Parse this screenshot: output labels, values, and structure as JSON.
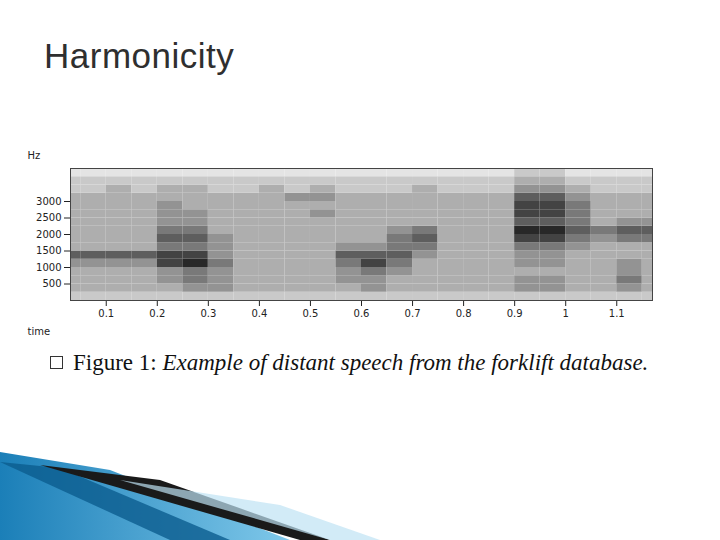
{
  "slide": {
    "title": "Harmonicity",
    "caption": {
      "label": "Figure 1:",
      "text": "Example of distant speech from the forklift database."
    }
  },
  "chart_data": {
    "type": "heatmap",
    "xlabel": "time",
    "ylabel": "Hz",
    "xlim": [
      0.03,
      1.17
    ],
    "ylim": [
      0,
      4000
    ],
    "xticks": [
      0.1,
      0.2,
      0.3,
      0.4,
      0.5,
      0.6,
      0.7,
      0.8,
      0.9,
      1.0,
      1.1
    ],
    "yticks": [
      500,
      1000,
      1500,
      2000,
      2500,
      3000
    ],
    "time_bins": [
      0,
      0.05,
      0.1,
      0.15,
      0.2,
      0.25,
      0.3,
      0.35,
      0.4,
      0.45,
      0.5,
      0.55,
      0.6,
      0.65,
      0.7,
      0.75,
      0.8,
      0.85,
      0.9,
      0.95,
      1.0,
      1.05,
      1.1,
      1.15,
      1.2
    ],
    "freq_bins": [
      0,
      250,
      500,
      750,
      1000,
      1250,
      1500,
      1750,
      2000,
      2250,
      2500,
      2750,
      3000,
      3250,
      3500,
      3750,
      4000
    ],
    "intensity_range": [
      0,
      9
    ],
    "intensity": [
      [
        2,
        2,
        2,
        2,
        2,
        2,
        2,
        2,
        2,
        2,
        2,
        2,
        2,
        2,
        2,
        2,
        2,
        2,
        2,
        2,
        2,
        2,
        2,
        2
      ],
      [
        3,
        3,
        3,
        3,
        3,
        4,
        4,
        3,
        3,
        3,
        3,
        3,
        4,
        3,
        3,
        3,
        3,
        3,
        4,
        4,
        3,
        3,
        4,
        3
      ],
      [
        3,
        3,
        3,
        3,
        4,
        5,
        4,
        3,
        3,
        3,
        3,
        4,
        4,
        3,
        3,
        3,
        3,
        3,
        4,
        4,
        3,
        3,
        5,
        3
      ],
      [
        3,
        3,
        3,
        3,
        4,
        5,
        4,
        3,
        3,
        3,
        3,
        4,
        5,
        4,
        3,
        3,
        3,
        3,
        3,
        3,
        3,
        3,
        4,
        3
      ],
      [
        4,
        4,
        4,
        4,
        7,
        8,
        5,
        3,
        3,
        3,
        3,
        5,
        7,
        5,
        3,
        3,
        3,
        3,
        4,
        4,
        3,
        3,
        4,
        3
      ],
      [
        6,
        6,
        6,
        6,
        7,
        7,
        4,
        3,
        3,
        3,
        3,
        6,
        6,
        6,
        4,
        3,
        3,
        3,
        4,
        4,
        3,
        3,
        3,
        3
      ],
      [
        3,
        3,
        3,
        3,
        5,
        5,
        4,
        3,
        3,
        3,
        3,
        4,
        4,
        5,
        5,
        3,
        3,
        3,
        5,
        5,
        4,
        3,
        3,
        3
      ],
      [
        3,
        3,
        3,
        3,
        6,
        6,
        4,
        3,
        3,
        3,
        3,
        3,
        3,
        5,
        6,
        3,
        3,
        3,
        7,
        7,
        5,
        4,
        5,
        5
      ],
      [
        3,
        3,
        3,
        3,
        5,
        5,
        3,
        3,
        3,
        3,
        3,
        3,
        3,
        4,
        5,
        3,
        3,
        3,
        8,
        8,
        6,
        5,
        6,
        6
      ],
      [
        3,
        3,
        3,
        3,
        4,
        4,
        3,
        3,
        3,
        3,
        3,
        3,
        3,
        3,
        3,
        3,
        3,
        3,
        6,
        6,
        5,
        3,
        4,
        4
      ],
      [
        3,
        3,
        3,
        3,
        4,
        4,
        3,
        3,
        3,
        3,
        4,
        3,
        3,
        3,
        3,
        3,
        3,
        3,
        7,
        7,
        5,
        3,
        3,
        3
      ],
      [
        3,
        3,
        3,
        3,
        4,
        3,
        3,
        3,
        3,
        3,
        3,
        3,
        3,
        3,
        3,
        3,
        3,
        3,
        7,
        7,
        5,
        3,
        3,
        3
      ],
      [
        3,
        3,
        3,
        3,
        3,
        3,
        3,
        3,
        3,
        4,
        4,
        3,
        3,
        3,
        3,
        3,
        3,
        3,
        6,
        6,
        4,
        3,
        3,
        3
      ],
      [
        2,
        2,
        3,
        2,
        3,
        3,
        2,
        2,
        3,
        2,
        3,
        2,
        2,
        2,
        3,
        2,
        2,
        2,
        4,
        4,
        3,
        2,
        2,
        2
      ],
      [
        2,
        2,
        2,
        2,
        2,
        2,
        2,
        2,
        2,
        2,
        2,
        2,
        2,
        2,
        2,
        2,
        2,
        2,
        3,
        3,
        2,
        2,
        2,
        2
      ],
      [
        1,
        1,
        1,
        1,
        1,
        1,
        1,
        1,
        1,
        1,
        1,
        1,
        1,
        1,
        1,
        1,
        1,
        1,
        2,
        2,
        1,
        1,
        1,
        1
      ]
    ]
  }
}
